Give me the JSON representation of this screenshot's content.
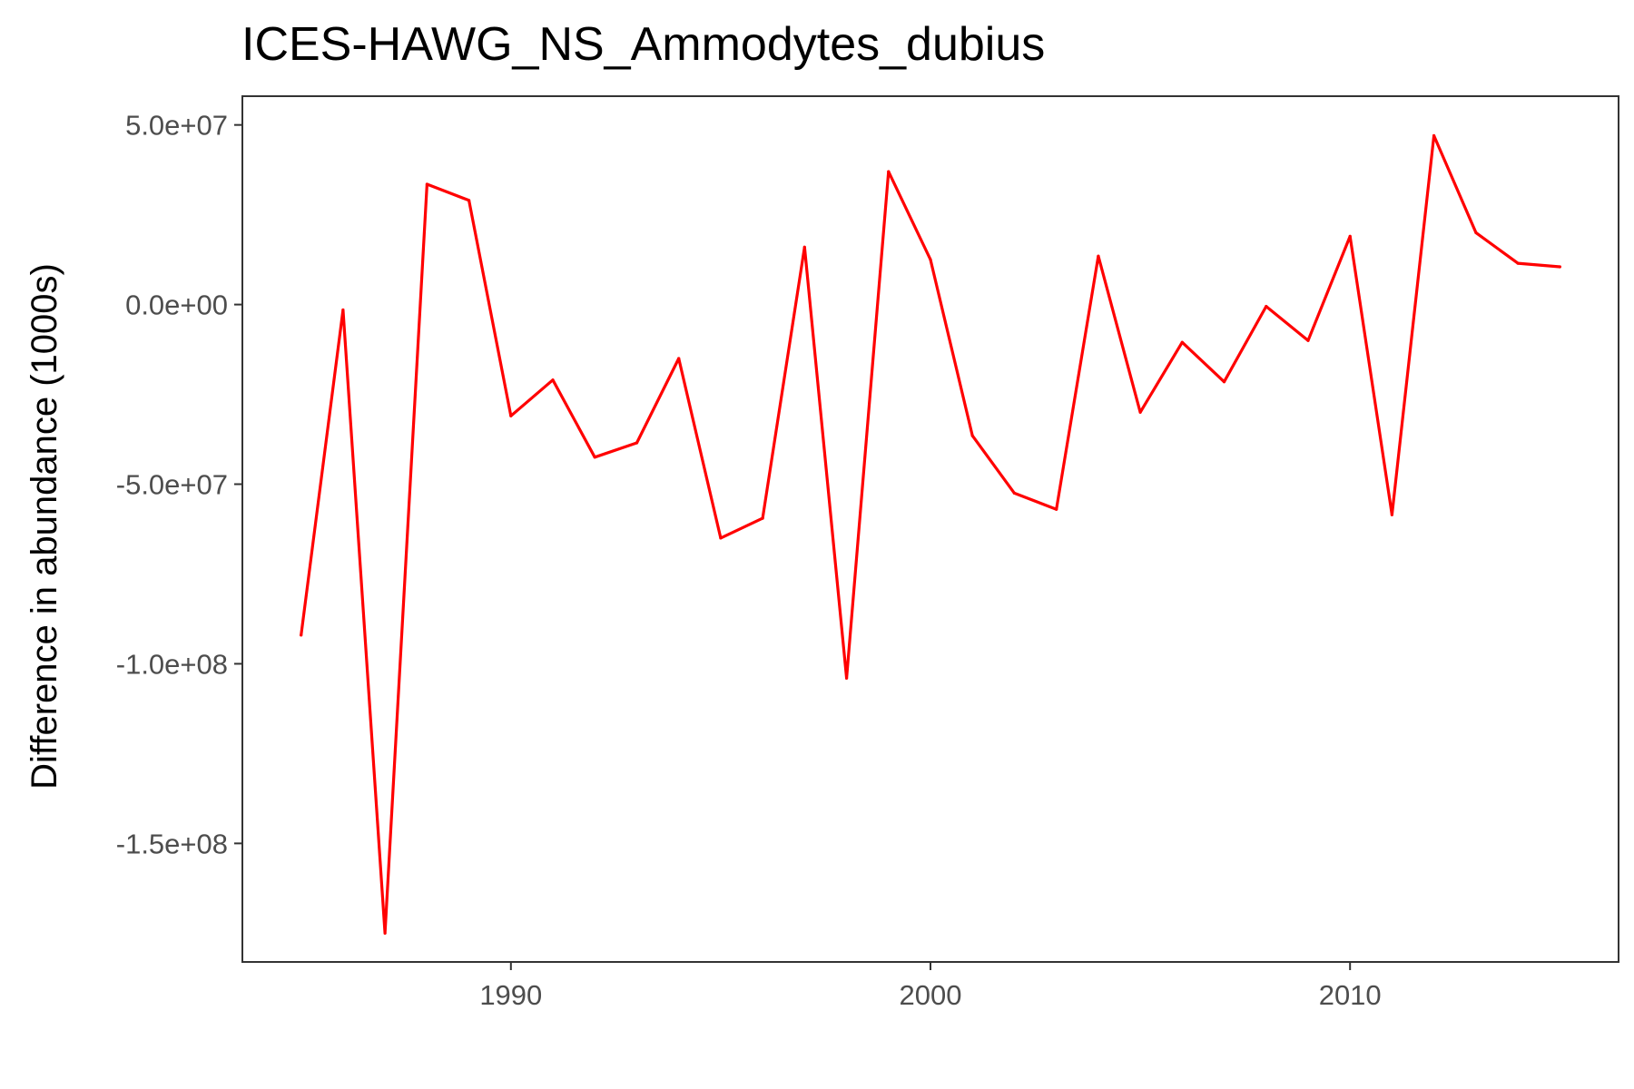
{
  "chart_data": {
    "type": "line",
    "title": "ICES-HAWG_NS_Ammodytes_dubius",
    "xlabel": "",
    "ylabel": "Difference in abundance (1000s)",
    "xlim": [
      1983.6,
      2016.4
    ],
    "ylim": [
      -183000000,
      58000000
    ],
    "x_ticks": [
      1990,
      2000,
      2010
    ],
    "x_tick_labels": [
      "1990",
      "2000",
      "2010"
    ],
    "y_ticks": [
      50000000,
      0,
      -50000000,
      -100000000,
      -150000000
    ],
    "y_tick_labels": [
      "5.0e+07",
      "0.0e+00",
      "-5.0e+07",
      "-1.0e+08",
      "-1.5e+08"
    ],
    "grid": false,
    "colors": {
      "line": "#ff0000",
      "frame": "#333333",
      "tick_text": "#4d4d4d",
      "background": "#ffffff"
    },
    "series": [
      {
        "x": [
          1985,
          1986,
          1987,
          1988,
          1989,
          1990,
          1991,
          1992,
          1993,
          1994,
          1995,
          1996,
          1997,
          1998,
          1999,
          2000,
          2001,
          2002,
          2003,
          2004,
          2005,
          2006,
          2007,
          2008,
          2009,
          2010,
          2011,
          2012,
          2013,
          2014,
          2015
        ],
        "values": [
          -92000000,
          -1500000,
          -175000000,
          33500000,
          29000000,
          -31000000,
          -21000000,
          -42500000,
          -38500000,
          -15000000,
          -65000000,
          -59500000,
          16000000,
          -104000000,
          37000000,
          12500000,
          -36500000,
          -52500000,
          -57000000,
          13500000,
          -30000000,
          -10500000,
          -21500000,
          -500000,
          -10000000,
          19000000,
          -58500000,
          47000000,
          20000000,
          11500000,
          10500000
        ]
      }
    ]
  }
}
